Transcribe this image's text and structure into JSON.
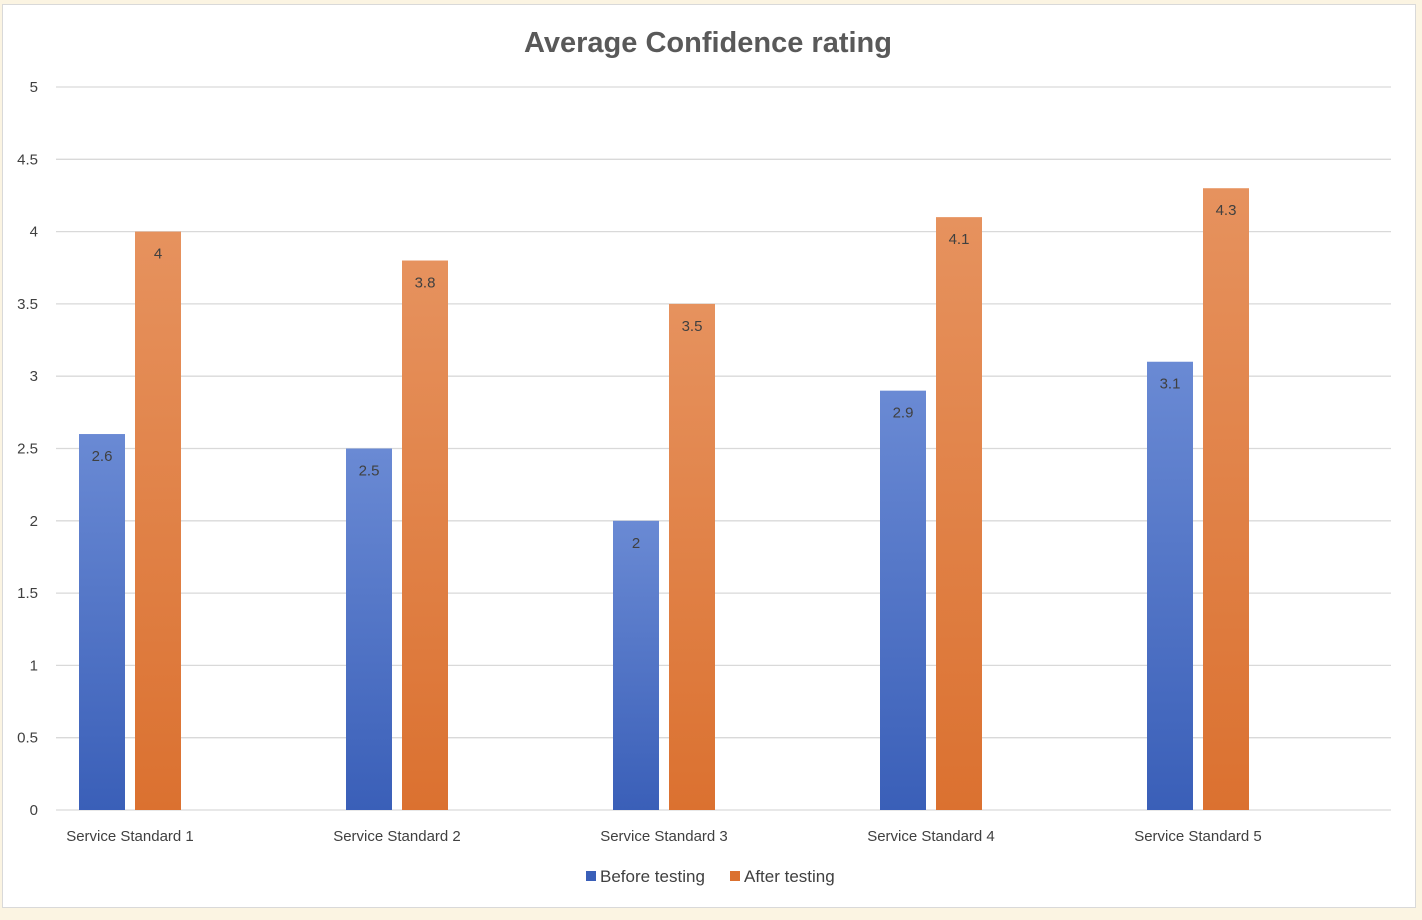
{
  "chart_data": {
    "type": "bar",
    "title": "Average Confidence rating",
    "categories": [
      "Service Standard 1",
      "Service Standard 2",
      "Service Standard 3",
      "Service Standard 4",
      "Service Standard 5"
    ],
    "series": [
      {
        "name": "Before testing",
        "values": [
          2.6,
          2.5,
          2,
          2.9,
          3.1
        ],
        "labels": [
          "2.6",
          "2.5",
          "2",
          "2.9",
          "3.1"
        ]
      },
      {
        "name": "After testing",
        "values": [
          4,
          3.8,
          3.5,
          4.1,
          4.3
        ],
        "labels": [
          "4",
          "3.8",
          "3.5",
          "4.1",
          "4.3"
        ]
      }
    ],
    "ylim": [
      0,
      5
    ],
    "yticks": [
      "0",
      "0.5",
      "1",
      "1.5",
      "2",
      "2.5",
      "3",
      "3.5",
      "4",
      "4.5",
      "5"
    ],
    "grid": true,
    "legend": "bottom",
    "colors": {
      "before_top": "#6a8ad4",
      "before_bottom": "#3a5fb8",
      "after_top": "#e6925e",
      "after_bottom": "#db7130",
      "grid": "#d9d9d9"
    }
  }
}
